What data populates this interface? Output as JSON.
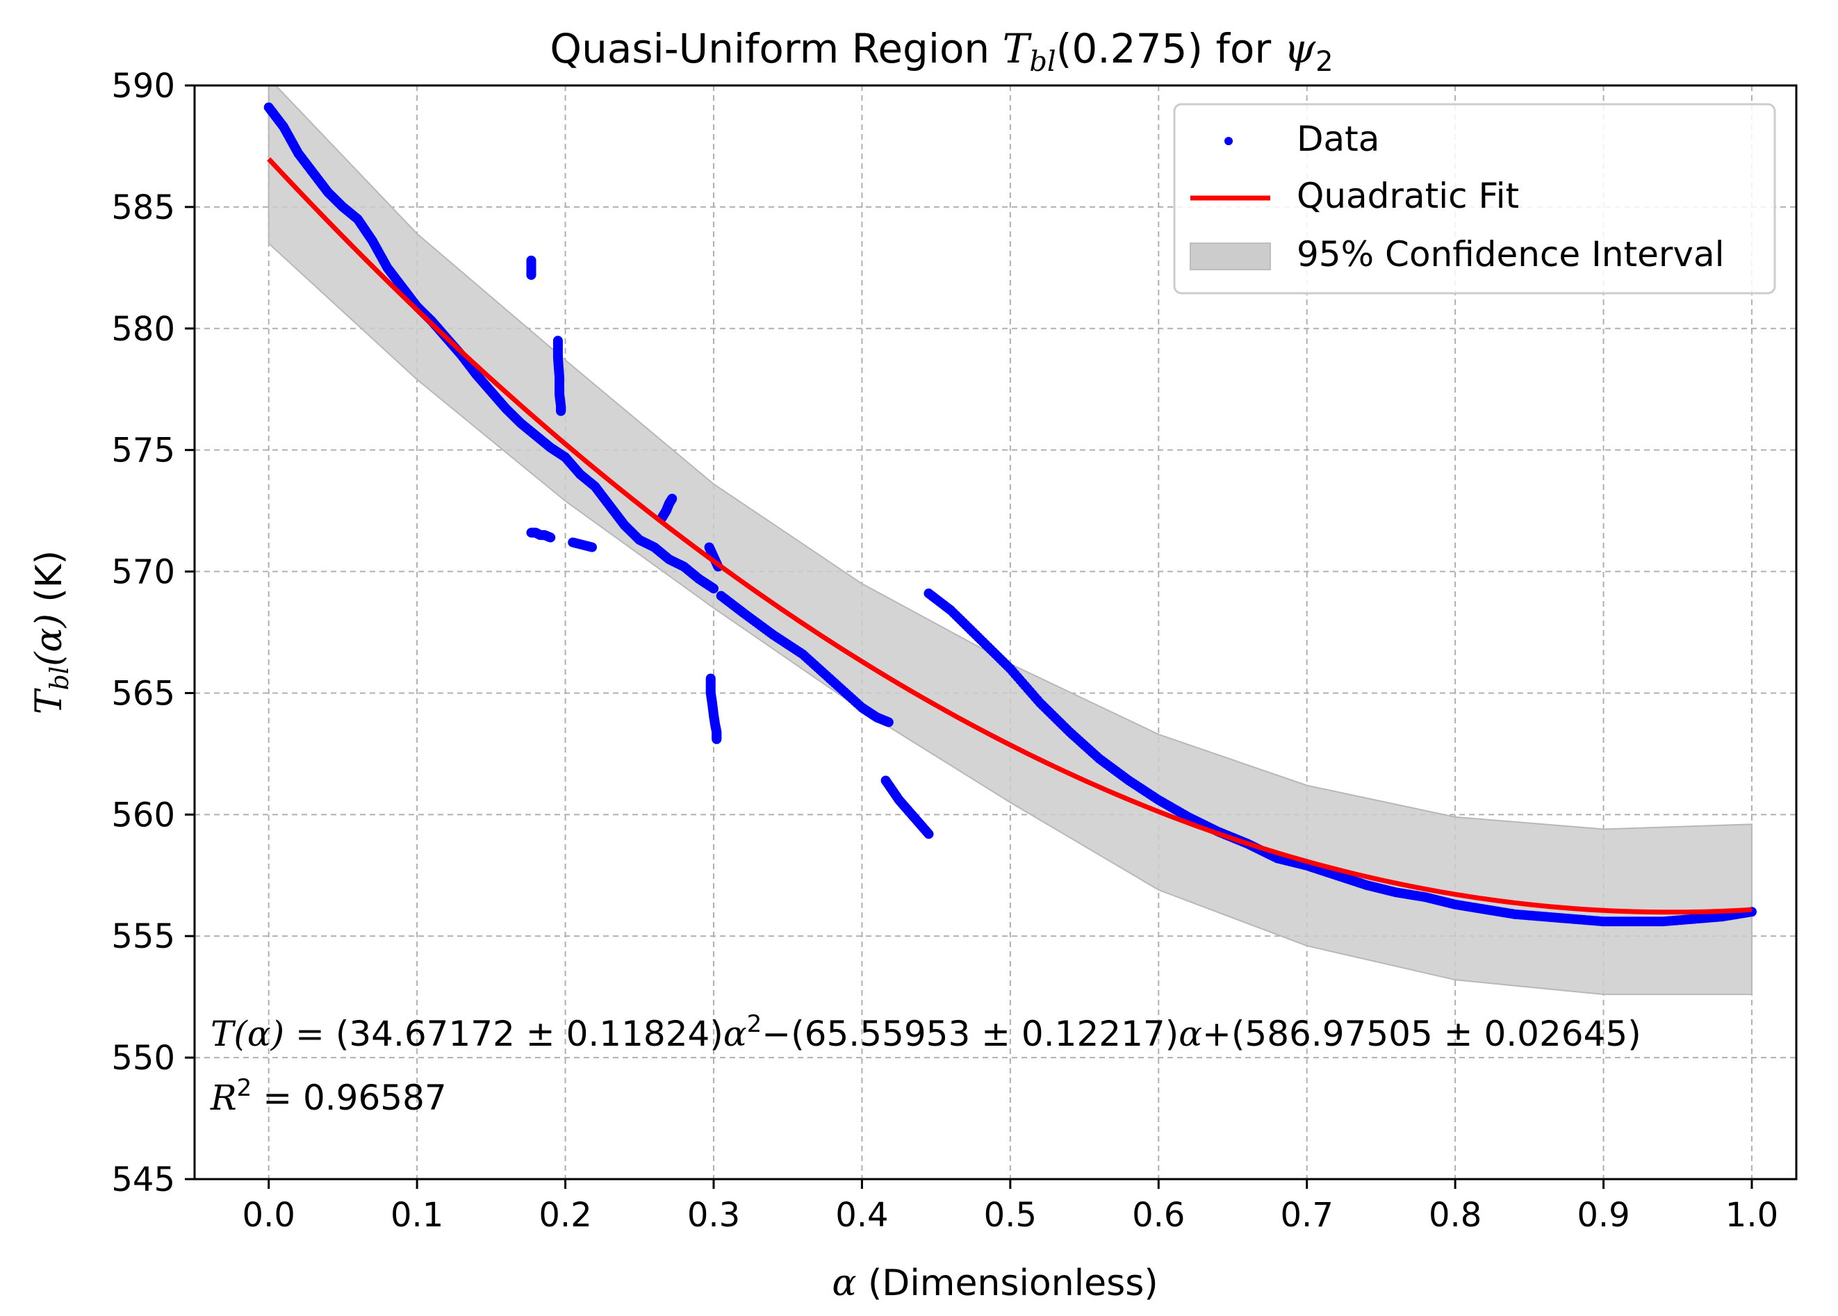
{
  "chart_data": {
    "type": "scatter",
    "title": {
      "prefix": "Quasi-Uniform Region ",
      "sym": "T",
      "sub": "bl",
      "arg": "(0.275) for ",
      "psi": "ψ",
      "psi_sub": "2"
    },
    "xlabel": {
      "sym": "α",
      "text": " (Dimensionless)"
    },
    "ylabel": {
      "sym": "T",
      "sub": "bl",
      "arg": "(α)",
      "unit": " (K)"
    },
    "xlim": [
      -0.05,
      1.03
    ],
    "ylim": [
      545,
      590
    ],
    "xticks": [
      0.0,
      0.1,
      0.2,
      0.3,
      0.4,
      0.5,
      0.6,
      0.7,
      0.8,
      0.9,
      1.0
    ],
    "xtick_labels": [
      "0.0",
      "0.1",
      "0.2",
      "0.3",
      "0.4",
      "0.5",
      "0.6",
      "0.7",
      "0.8",
      "0.9",
      "1.0"
    ],
    "yticks": [
      545,
      550,
      555,
      560,
      565,
      570,
      575,
      580,
      585,
      590
    ],
    "ytick_labels": [
      "545",
      "550",
      "555",
      "560",
      "565",
      "570",
      "575",
      "580",
      "585",
      "590"
    ],
    "grid": true,
    "legend": {
      "placement": "top-right",
      "entries": [
        {
          "label": "Data",
          "kind": "marker",
          "color": "#0000ff"
        },
        {
          "label": "Quadratic Fit",
          "kind": "line",
          "color": "#ff0000"
        },
        {
          "label": "95% Confidence Interval",
          "kind": "patch",
          "color": "#cccccc"
        }
      ]
    },
    "fit": {
      "a": 34.67172,
      "b": -65.55953,
      "c": 586.97505,
      "color": "#ff0000"
    },
    "confidence_band": {
      "color": "#cccccc",
      "x": [
        0.0,
        0.1,
        0.2,
        0.3,
        0.4,
        0.5,
        0.6,
        0.7,
        0.8,
        0.9,
        1.0
      ],
      "lower": [
        583.5,
        577.9,
        572.9,
        568.5,
        564.3,
        560.5,
        556.9,
        554.6,
        553.2,
        552.6,
        552.6
      ],
      "upper": [
        590.3,
        583.9,
        578.7,
        573.6,
        569.5,
        566.2,
        563.3,
        561.2,
        559.9,
        559.4,
        559.6
      ]
    },
    "series": [
      {
        "name": "Data",
        "color": "#0000ff",
        "segments": [
          {
            "x": [
              0.0,
              0.01,
              0.02,
              0.03,
              0.04,
              0.05,
              0.06,
              0.07,
              0.08,
              0.09,
              0.1,
              0.11,
              0.12,
              0.13,
              0.14,
              0.15,
              0.16,
              0.17,
              0.18,
              0.19,
              0.2,
              0.21,
              0.22,
              0.23,
              0.24,
              0.25,
              0.26,
              0.27,
              0.28,
              0.29,
              0.3
            ],
            "y": [
              589.1,
              588.3,
              587.2,
              586.4,
              585.6,
              585.0,
              584.5,
              583.6,
              582.5,
              581.7,
              580.9,
              580.3,
              579.6,
              578.9,
              578.1,
              577.4,
              576.7,
              576.1,
              575.6,
              575.1,
              574.7,
              574.0,
              573.5,
              572.7,
              571.9,
              571.3,
              571.0,
              570.5,
              570.2,
              569.7,
              569.3
            ]
          },
          {
            "x": [
              0.305,
              0.32,
              0.34,
              0.36,
              0.38,
              0.4,
              0.41,
              0.418
            ],
            "y": [
              569.0,
              568.3,
              567.4,
              566.6,
              565.5,
              564.4,
              564.0,
              563.8
            ]
          },
          {
            "x": [
              0.416,
              0.425,
              0.435,
              0.445
            ],
            "y": [
              561.4,
              560.6,
              559.9,
              559.2
            ]
          },
          {
            "x": [
              0.445,
              0.46,
              0.48,
              0.5,
              0.52,
              0.54,
              0.56,
              0.58,
              0.6,
              0.62,
              0.64,
              0.66,
              0.68,
              0.7,
              0.72,
              0.74,
              0.76,
              0.78,
              0.8,
              0.82,
              0.84,
              0.86,
              0.88,
              0.9,
              0.92,
              0.94,
              0.96,
              0.98,
              1.0
            ],
            "y": [
              569.1,
              568.4,
              567.2,
              566.0,
              564.6,
              563.4,
              562.3,
              561.4,
              560.6,
              559.9,
              559.3,
              558.8,
              558.2,
              557.9,
              557.5,
              557.1,
              556.8,
              556.6,
              556.3,
              556.1,
              555.9,
              555.8,
              555.7,
              555.6,
              555.6,
              555.6,
              555.7,
              555.8,
              556.0
            ]
          },
          {
            "x": [
              0.177,
              0.177,
              0.177
            ],
            "y": [
              582.2,
              582.5,
              582.8
            ]
          },
          {
            "x": [
              0.195,
              0.195,
              0.196,
              0.196,
              0.197,
              0.197
            ],
            "y": [
              579.5,
              578.8,
              578.0,
              577.3,
              576.8,
              576.6
            ]
          },
          {
            "x": [
              0.177,
              0.18,
              0.183,
              0.186,
              0.19
            ],
            "y": [
              571.6,
              571.6,
              571.5,
              571.5,
              571.4
            ]
          },
          {
            "x": [
              0.205,
              0.218
            ],
            "y": [
              571.2,
              571.0
            ]
          },
          {
            "x": [
              0.265,
              0.268,
              0.27,
              0.272
            ],
            "y": [
              572.2,
              572.5,
              572.8,
              573.0
            ]
          },
          {
            "x": [
              0.298,
              0.298,
              0.299,
              0.3,
              0.301,
              0.302,
              0.302
            ],
            "y": [
              565.6,
              565.0,
              564.6,
              564.1,
              563.7,
              563.4,
              563.1
            ]
          },
          {
            "x": [
              0.297,
              0.3,
              0.303
            ],
            "y": [
              571.0,
              570.6,
              570.2
            ]
          }
        ]
      }
    ],
    "annotations": {
      "equation": {
        "lhs": "T(α) = ",
        "t1": "(34.67172 ± 0.11824)",
        "p1": "α",
        "e1": "2",
        "op1": "−",
        "t2": "(65.55953 ± 0.12217)",
        "p2": "α",
        "op2": "+",
        "t3": "(586.97505 ± 0.02645)"
      },
      "r2": {
        "sym": "R",
        "exp": "2",
        "rhs": " = 0.96587"
      }
    }
  }
}
